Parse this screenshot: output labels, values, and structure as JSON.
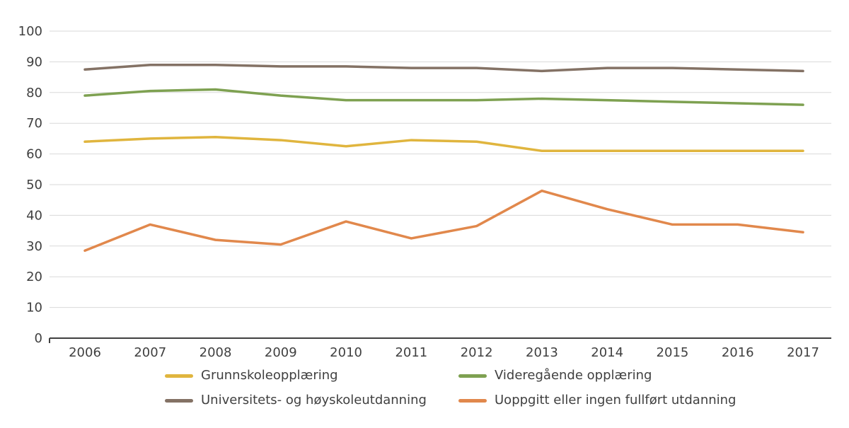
{
  "chart_data": {
    "type": "line",
    "x": [
      "2006",
      "2007",
      "2008",
      "2009",
      "2010",
      "2011",
      "2012",
      "2013",
      "2014",
      "2015",
      "2016",
      "2017"
    ],
    "series": [
      {
        "id": "grunnskole",
        "name": "Grunnskoleopplæring",
        "color": "#e0b53e",
        "values": [
          64,
          65,
          65.5,
          64.5,
          62.5,
          64.5,
          64,
          61,
          61,
          61,
          61,
          61
        ]
      },
      {
        "id": "videregaende",
        "name": "Videregående opplæring",
        "color": "#7ea151",
        "values": [
          79,
          80.5,
          81,
          79,
          77.5,
          77.5,
          77.5,
          78,
          77.5,
          77,
          76.5,
          76
        ]
      },
      {
        "id": "universitets",
        "name": "Universitets- og høyskoleutdanning",
        "color": "#847265",
        "values": [
          87.5,
          89,
          89,
          88.5,
          88.5,
          88,
          88,
          87,
          88,
          88,
          87.5,
          87
        ]
      },
      {
        "id": "uoppgitt",
        "name": "Uoppgitt eller ingen fullført utdanning",
        "color": "#e1884c",
        "values": [
          28.5,
          37,
          32,
          30.5,
          38,
          32.5,
          36.5,
          48,
          42,
          37,
          37,
          34.5
        ]
      }
    ],
    "title": "",
    "xlabel": "",
    "ylabel": "",
    "ylim": [
      0,
      100
    ],
    "ytick_step": 10,
    "grid": true,
    "legend_position": "bottom"
  },
  "colors": {
    "grid": "#d9d9d9",
    "axis": "#404040",
    "text": "#404040",
    "background": "#ffffff"
  }
}
